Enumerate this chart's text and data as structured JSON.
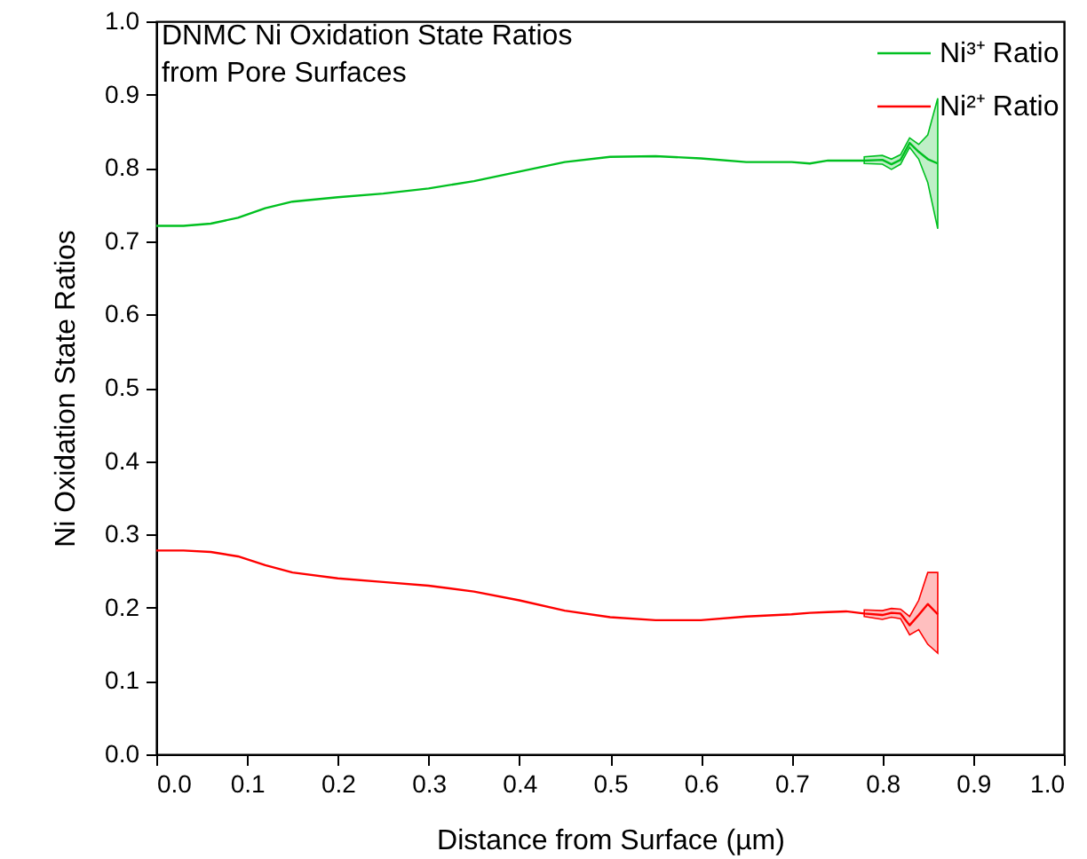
{
  "chart_data": {
    "type": "line",
    "title": "DNMC Ni Oxidation State Ratios\nfrom Pore Surfaces",
    "xlabel": "Distance from Surface (µm)",
    "ylabel": "Ni Oxidation State Ratios",
    "x": [
      0,
      0.03,
      0.06,
      0.09,
      0.12,
      0.15,
      0.2,
      0.25,
      0.3,
      0.35,
      0.4,
      0.45,
      0.5,
      0.55,
      0.6,
      0.65,
      0.7,
      0.72,
      0.74,
      0.76,
      0.78,
      0.8,
      0.81,
      0.82,
      0.83,
      0.84,
      0.85,
      0.861
    ],
    "series": [
      {
        "name": "Ni³⁺ Ratio",
        "color": "#00c020",
        "values": [
          0.721,
          0.721,
          0.724,
          0.732,
          0.745,
          0.754,
          0.76,
          0.765,
          0.772,
          0.782,
          0.795,
          0.808,
          0.815,
          0.816,
          0.813,
          0.808,
          0.808,
          0.806,
          0.81,
          0.81,
          0.81,
          0.811,
          0.805,
          0.811,
          0.834,
          0.822,
          0.812,
          0.806
        ],
        "lower": [
          null,
          null,
          null,
          null,
          null,
          null,
          null,
          null,
          null,
          null,
          null,
          null,
          null,
          null,
          null,
          null,
          null,
          null,
          null,
          null,
          0.806,
          0.805,
          0.798,
          0.805,
          0.828,
          0.812,
          0.78,
          0.717
        ],
        "upper": [
          null,
          null,
          null,
          null,
          null,
          null,
          null,
          null,
          null,
          null,
          null,
          null,
          null,
          null,
          null,
          null,
          null,
          null,
          null,
          null,
          0.815,
          0.817,
          0.812,
          0.818,
          0.841,
          0.832,
          0.845,
          0.895
        ]
      },
      {
        "name": "Ni²⁺ Ratio",
        "color": "#ff0000",
        "values": [
          0.278,
          0.278,
          0.276,
          0.27,
          0.258,
          0.248,
          0.24,
          0.235,
          0.23,
          0.222,
          0.21,
          0.196,
          0.187,
          0.183,
          0.183,
          0.188,
          0.191,
          0.193,
          0.194,
          0.195,
          0.192,
          0.19,
          0.193,
          0.192,
          0.176,
          0.19,
          0.205,
          0.191
        ],
        "lower": [
          null,
          null,
          null,
          null,
          null,
          null,
          null,
          null,
          null,
          null,
          null,
          null,
          null,
          null,
          null,
          null,
          null,
          null,
          null,
          null,
          0.188,
          0.184,
          0.187,
          0.185,
          0.163,
          0.17,
          0.15,
          0.138
        ],
        "upper": [
          null,
          null,
          null,
          null,
          null,
          null,
          null,
          null,
          null,
          null,
          null,
          null,
          null,
          null,
          null,
          null,
          null,
          null,
          null,
          null,
          0.197,
          0.196,
          0.199,
          0.198,
          0.188,
          0.21,
          0.248,
          0.248
        ]
      }
    ],
    "xlim": [
      0,
      1
    ],
    "xticks": [
      {
        "value": 0,
        "label": "0.0"
      },
      0.1,
      0.2,
      0.3,
      0.4,
      0.5,
      0.6,
      0.7,
      0.8,
      0.9,
      {
        "value": 1,
        "label": "1.0"
      }
    ],
    "ylim": [
      0,
      1
    ],
    "yticks": [
      {
        "value": 0,
        "label": "0.0"
      },
      0.1,
      0.2,
      0.3,
      0.4,
      0.5,
      0.6,
      0.7,
      0.8,
      0.9,
      {
        "value": 1,
        "label": "1.0"
      }
    ],
    "grid": false,
    "legend": "top right",
    "marker": "none",
    "line_style": "solid"
  }
}
